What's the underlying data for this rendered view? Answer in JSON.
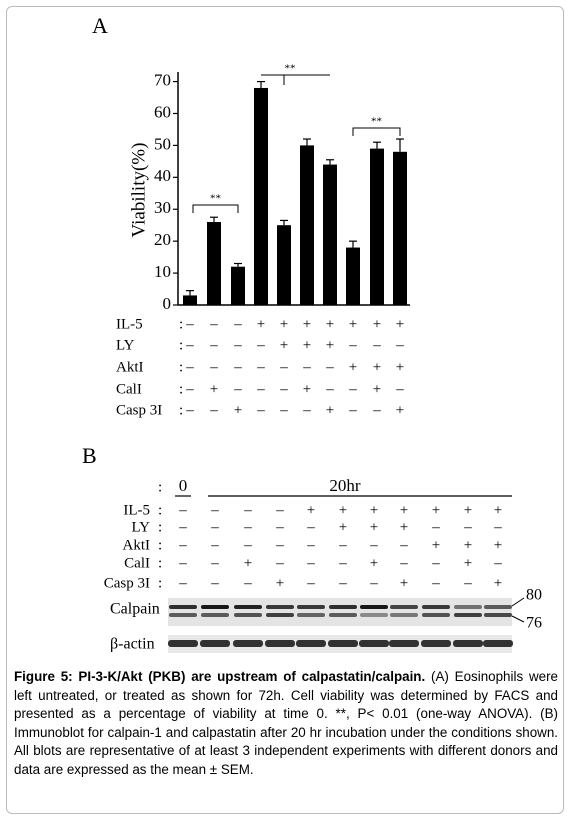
{
  "panel_a": {
    "label": "A"
  },
  "chart_data": {
    "type": "bar",
    "y_label": "Viability(%)",
    "values": [
      3,
      26,
      12,
      68,
      25,
      50,
      44,
      18,
      49,
      48
    ],
    "errors": [
      1.5,
      1.5,
      1,
      2,
      1.5,
      2,
      1.5,
      2,
      2,
      4
    ],
    "color": "#000000",
    "ylim": [
      0,
      73
    ],
    "yticks": [
      0,
      10,
      20,
      30,
      40,
      50,
      60,
      70
    ],
    "annotations": [
      "**",
      "**",
      "**"
    ],
    "separator": ":",
    "conditions": [
      {
        "name": "IL-5",
        "signs": [
          "–",
          "–",
          "–",
          "+",
          "+",
          "+",
          "+",
          "+",
          "+",
          "+"
        ]
      },
      {
        "name": "LY",
        "signs": [
          "–",
          "–",
          "–",
          "–",
          "+",
          "+",
          "+",
          "–",
          "–",
          "–"
        ]
      },
      {
        "name": "AktI",
        "signs": [
          "–",
          "–",
          "–",
          "–",
          "–",
          "–",
          "–",
          "+",
          "+",
          "+"
        ]
      },
      {
        "name": "CalI",
        "signs": [
          "–",
          "+",
          "–",
          "–",
          "–",
          "+",
          "–",
          "–",
          "+",
          "–"
        ]
      },
      {
        "name": "Casp 3I",
        "signs": [
          "–",
          "–",
          "+",
          "–",
          "–",
          "–",
          "+",
          "–",
          "–",
          "+"
        ]
      }
    ]
  },
  "panel_b": {
    "label": "B",
    "separator": ":",
    "times": [
      "0",
      "20hr"
    ],
    "rows": [
      {
        "name": "IL-5",
        "signs": [
          "–",
          "–",
          "–",
          "–",
          "+",
          "+",
          "+",
          "+",
          "+",
          "+",
          "+"
        ]
      },
      {
        "name": "LY",
        "signs": [
          "–",
          "–",
          "–",
          "–",
          "–",
          "+",
          "+",
          "+",
          "–",
          "–",
          "–"
        ]
      },
      {
        "name": "AktI",
        "signs": [
          "–",
          "–",
          "–",
          "–",
          "–",
          "–",
          "–",
          "–",
          "+",
          "+",
          "+"
        ]
      },
      {
        "name": "CalI",
        "signs": [
          "–",
          "–",
          "+",
          "–",
          "–",
          "–",
          "+",
          "–",
          "–",
          "+",
          "–"
        ]
      },
      {
        "name": "Casp 3I",
        "signs": [
          "–",
          "–",
          "–",
          "+",
          "–",
          "–",
          "–",
          "+",
          "–",
          "–",
          "+"
        ]
      }
    ],
    "blots": [
      "Calpain",
      "β-actin"
    ],
    "markers": [
      "80",
      "76"
    ]
  },
  "caption": {
    "title": "Figure 5: PI-3-K/Akt (PKB) are upstream of calpastatin/calpain.",
    "text": "(A) Eosinophils were left untreated, or treated as shown for 72h. Cell viability was determined by FACS and presented as a percentage of viability at time 0. **, P< 0.01 (one-way ANOVA). (B) Immunoblot for calpain-1 and calpastatin after 20 hr incubation under the conditions shown. All blots are representative of at least 3 independent experiments with different donors and data are expressed as the mean ± SEM."
  }
}
